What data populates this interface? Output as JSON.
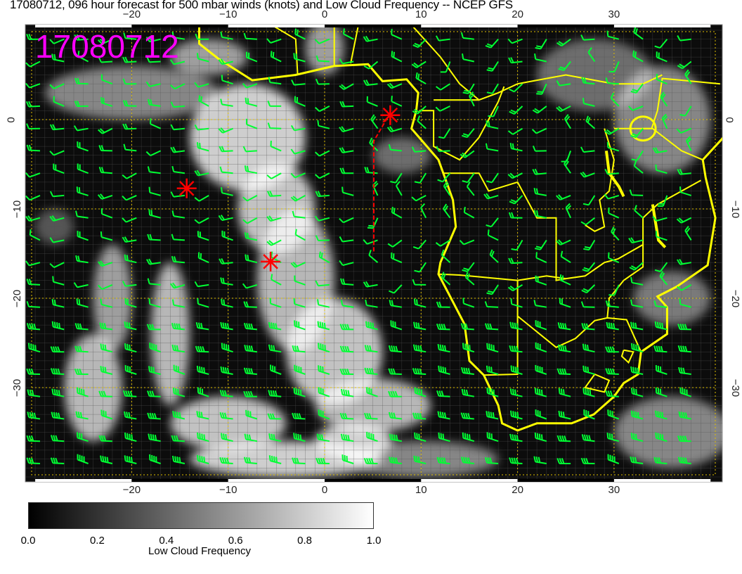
{
  "title": "17080712, 096 hour forecast for 500 mbar winds (knots) and Low Cloud Frequency -- NCEP GFS",
  "stamp": "17080712",
  "axes": {
    "lon_ticks": [
      "−20",
      "−10",
      "0",
      "10",
      "20",
      "30"
    ],
    "lon_values": [
      -20,
      -10,
      0,
      10,
      20,
      30
    ],
    "lat_ticks": [
      "0",
      "−10",
      "−20",
      "−30"
    ],
    "lat_values": [
      0,
      -10,
      -20,
      -30
    ],
    "lon_range": [
      -31,
      41.2
    ],
    "lat_range": [
      -40.5,
      10.6
    ]
  },
  "colorbar": {
    "label": "Low Cloud Frequency",
    "ticks": [
      "0.0",
      "0.2",
      "0.4",
      "0.6",
      "0.8",
      "1.0"
    ],
    "range": [
      0,
      1
    ],
    "colormap": "grayscale"
  },
  "colors": {
    "coastline": "#ffff00",
    "wind_barbs": "#00ff33",
    "markers": "#ff0000",
    "stamp": "#ff00ff",
    "grid": "#e0c000"
  },
  "markers": [
    {
      "type": "asterisk",
      "lon": 6.8,
      "lat": 0.5
    },
    {
      "type": "asterisk",
      "lon": -14.3,
      "lat": -7.7
    },
    {
      "type": "asterisk",
      "lon": -5.6,
      "lat": -15.9
    }
  ],
  "track": {
    "style": "dashed",
    "points": [
      [
        6.5,
        0.2
      ],
      [
        5.1,
        -2.4
      ],
      [
        5.1,
        -15.0
      ]
    ]
  }
}
